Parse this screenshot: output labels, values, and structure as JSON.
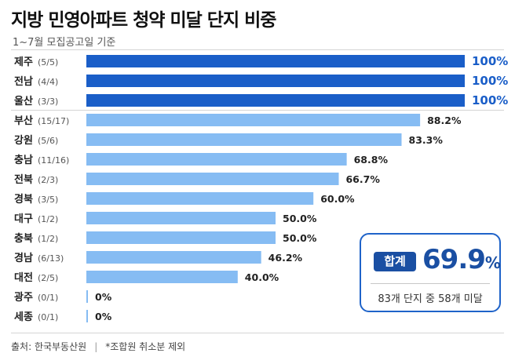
{
  "title": "지방 민영아파트 청약 미달 단지 비중",
  "subtitle": "1~7월 모집공고일 기준",
  "chart_data": {
    "type": "bar",
    "orientation": "horizontal",
    "title": "지방 민영아파트 청약 미달 단지 비중",
    "subtitle": "1~7월 모집공고일 기준",
    "categories": [
      "제주",
      "전남",
      "울산",
      "부산",
      "강원",
      "충남",
      "전북",
      "경북",
      "대구",
      "충북",
      "경남",
      "대전",
      "광주",
      "세종"
    ],
    "counts": [
      "(5/5)",
      "(4/4)",
      "(3/3)",
      "(15/17)",
      "(5/6)",
      "(11/16)",
      "(2/3)",
      "(3/5)",
      "(1/2)",
      "(1/2)",
      "(6/13)",
      "(2/5)",
      "(0/1)",
      "(0/1)"
    ],
    "values": [
      100,
      100,
      100,
      88.2,
      83.3,
      68.8,
      66.7,
      60.0,
      50.0,
      50.0,
      46.2,
      40.0,
      0,
      0
    ],
    "value_labels": [
      "100%",
      "100%",
      "100%",
      "88.2%",
      "83.3%",
      "68.8%",
      "66.7%",
      "60.0%",
      "50.0%",
      "50.0%",
      "46.2%",
      "40.0%",
      "0%",
      "0%"
    ],
    "xlim": [
      0,
      100
    ],
    "unit": "%",
    "colors": {
      "highlight": "#1a5ec8",
      "normal": "#86bcf3"
    }
  },
  "summary": {
    "label": "합계",
    "value": "69.9",
    "unit": "%",
    "description": "83개 단지 중 58개 미달"
  },
  "footer": {
    "source": "출처: 한국부동산원",
    "separator": "|",
    "note": "*조합원 취소분 제외"
  }
}
